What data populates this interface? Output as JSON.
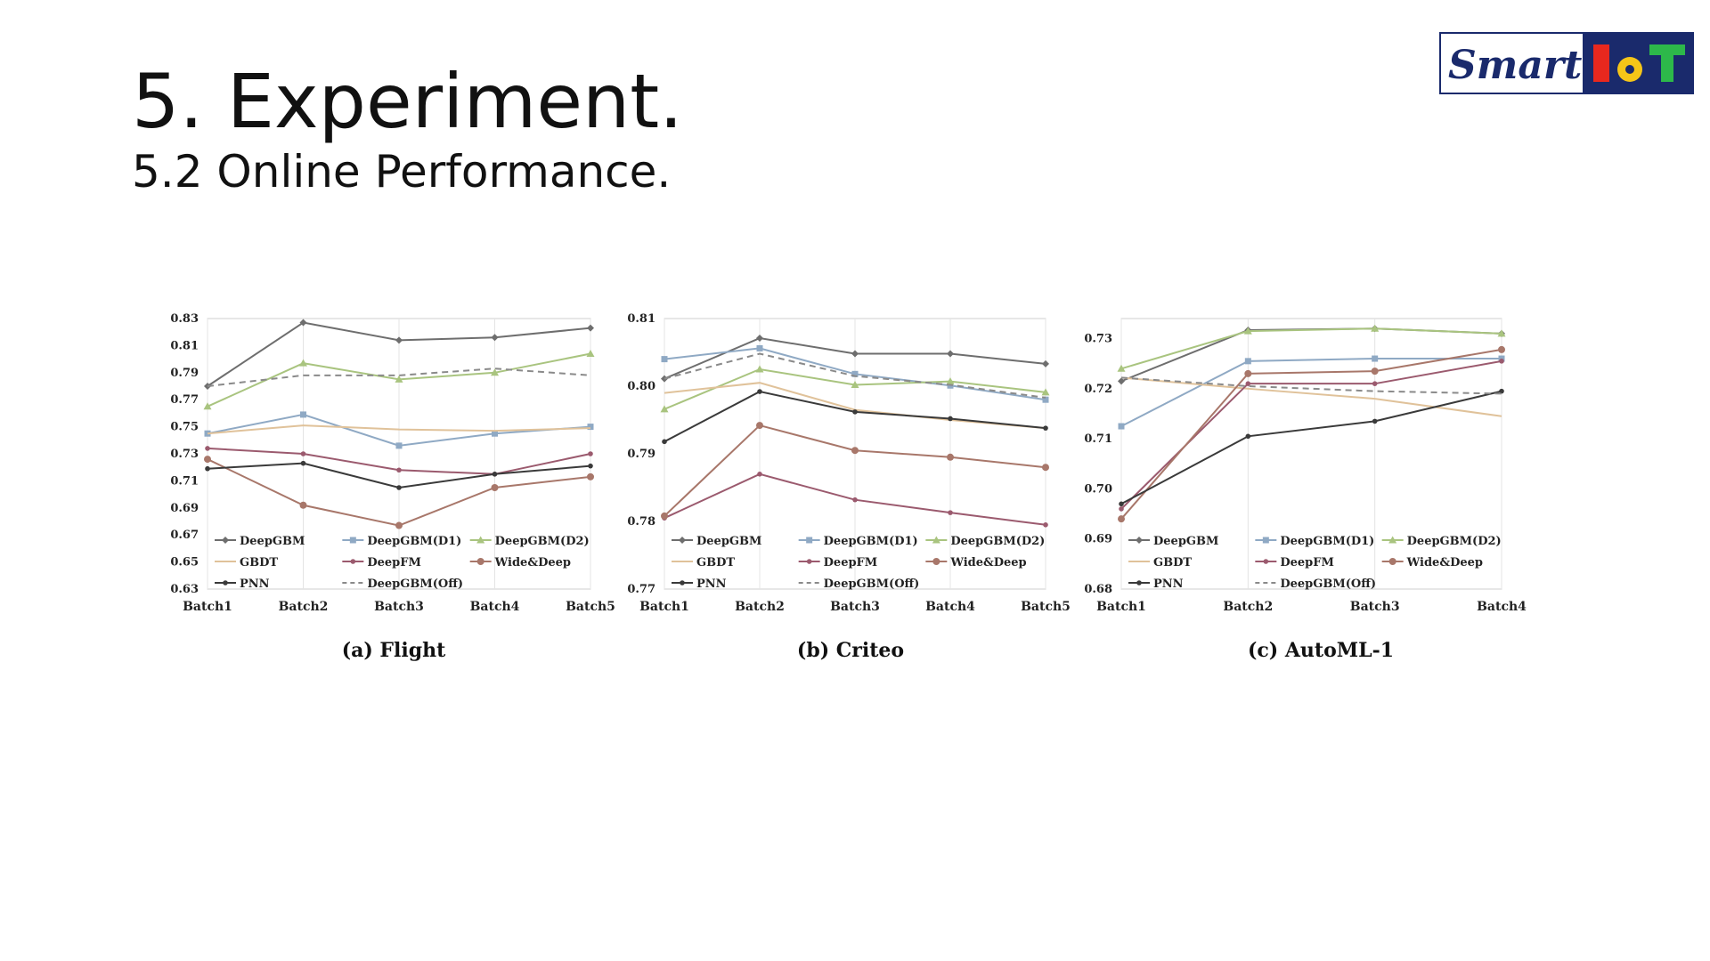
{
  "slide": {
    "title": "5. Experiment.",
    "subtitle": "5.2 Online Performance."
  },
  "logo": {
    "word": "Smart",
    "mark": "IoT"
  },
  "styles": {
    "DeepGBM": {
      "color": "#6e6e6e",
      "marker": "diamond",
      "dash": false
    },
    "DeepGBM(D1)": {
      "color": "#8fa9c4",
      "marker": "square",
      "dash": false
    },
    "DeepGBM(D2)": {
      "color": "#a9c47f",
      "marker": "triangle",
      "dash": false
    },
    "GBDT": {
      "color": "#e0c29a",
      "marker": "none",
      "dash": false
    },
    "DeepFM": {
      "color": "#9b5a6e",
      "marker": "dot",
      "dash": false
    },
    "Wide&Deep": {
      "color": "#a8776a",
      "marker": "circle",
      "dash": false
    },
    "PNN": {
      "color": "#3a3a3a",
      "marker": "dot",
      "dash": false
    },
    "DeepGBM(Off)": {
      "color": "#8a8a8a",
      "marker": "none",
      "dash": true
    }
  },
  "chart_data": [
    {
      "type": "line",
      "caption": "(a) Flight",
      "categories": [
        "Batch1",
        "Batch2",
        "Batch3",
        "Batch4",
        "Batch5"
      ],
      "ylim": [
        0.63,
        0.83
      ],
      "yticks": [
        "0.63",
        "0.65",
        "0.67",
        "0.69",
        "0.71",
        "0.73",
        "0.75",
        "0.77",
        "0.79",
        "0.81",
        "0.83"
      ],
      "grid": true,
      "legend": "bottom",
      "series": [
        {
          "name": "DeepGBM",
          "values": [
            0.78,
            0.827,
            0.814,
            0.816,
            0.823
          ]
        },
        {
          "name": "DeepGBM(D1)",
          "values": [
            0.745,
            0.759,
            0.736,
            0.745,
            0.75
          ]
        },
        {
          "name": "DeepGBM(D2)",
          "values": [
            0.765,
            0.797,
            0.785,
            0.79,
            0.804
          ]
        },
        {
          "name": "GBDT",
          "values": [
            0.745,
            0.751,
            0.748,
            0.747,
            0.749
          ]
        },
        {
          "name": "DeepFM",
          "values": [
            0.734,
            0.73,
            0.718,
            0.715,
            0.73
          ]
        },
        {
          "name": "Wide&Deep",
          "values": [
            0.726,
            0.692,
            0.677,
            0.705,
            0.713
          ]
        },
        {
          "name": "PNN",
          "values": [
            0.719,
            0.723,
            0.705,
            0.715,
            0.721
          ]
        },
        {
          "name": "DeepGBM(Off)",
          "values": [
            0.78,
            0.788,
            0.788,
            0.793,
            0.788
          ]
        }
      ]
    },
    {
      "type": "line",
      "caption": "(b) Criteo",
      "categories": [
        "Batch1",
        "Batch2",
        "Batch3",
        "Batch4",
        "Batch5"
      ],
      "ylim": [
        0.77,
        0.81
      ],
      "yticks": [
        "0.77",
        "0.78",
        "0.79",
        "0.80",
        "0.81"
      ],
      "grid": true,
      "legend": "bottom",
      "series": [
        {
          "name": "DeepGBM",
          "values": [
            0.8011,
            0.8071,
            0.8048,
            0.8048,
            0.8033
          ]
        },
        {
          "name": "DeepGBM(D1)",
          "values": [
            0.804,
            0.8056,
            0.8018,
            0.8001,
            0.798
          ]
        },
        {
          "name": "DeepGBM(D2)",
          "values": [
            0.7966,
            0.8025,
            0.8002,
            0.8007,
            0.7991
          ]
        },
        {
          "name": "GBDT",
          "values": [
            0.799,
            0.8005,
            0.7965,
            0.795,
            0.7938
          ]
        },
        {
          "name": "DeepFM",
          "values": [
            0.7805,
            0.787,
            0.7832,
            0.7813,
            0.7795
          ]
        },
        {
          "name": "Wide&Deep",
          "values": [
            0.7808,
            0.7942,
            0.7905,
            0.7895,
            0.788
          ]
        },
        {
          "name": "PNN",
          "values": [
            0.7918,
            0.7992,
            0.7962,
            0.7952,
            0.7938
          ]
        },
        {
          "name": "DeepGBM(Off)",
          "values": [
            0.8011,
            0.8048,
            0.8015,
            0.8002,
            0.7983
          ]
        }
      ]
    },
    {
      "type": "line",
      "caption": "(c) AutoML-1",
      "categories": [
        "Batch1",
        "Batch2",
        "Batch3",
        "Batch4"
      ],
      "ylim": [
        0.68,
        0.734
      ],
      "yticks": [
        "0.68",
        "0.69",
        "0.70",
        "0.71",
        "0.72",
        "0.73"
      ],
      "grid": true,
      "legend": "bottom",
      "series": [
        {
          "name": "DeepGBM",
          "values": [
            0.7215,
            0.7317,
            0.732,
            0.731
          ]
        },
        {
          "name": "DeepGBM(D1)",
          "values": [
            0.7125,
            0.7255,
            0.726,
            0.726
          ]
        },
        {
          "name": "DeepGBM(D2)",
          "values": [
            0.724,
            0.7315,
            0.732,
            0.731
          ]
        },
        {
          "name": "GBDT",
          "values": [
            0.7222,
            0.72,
            0.718,
            0.7145
          ]
        },
        {
          "name": "DeepFM",
          "values": [
            0.696,
            0.721,
            0.721,
            0.7255
          ]
        },
        {
          "name": "Wide&Deep",
          "values": [
            0.694,
            0.723,
            0.7235,
            0.7278
          ]
        },
        {
          "name": "PNN",
          "values": [
            0.697,
            0.7105,
            0.7135,
            0.7195
          ]
        },
        {
          "name": "DeepGBM(Off)",
          "values": [
            0.7222,
            0.7205,
            0.7195,
            0.719
          ]
        }
      ]
    }
  ]
}
